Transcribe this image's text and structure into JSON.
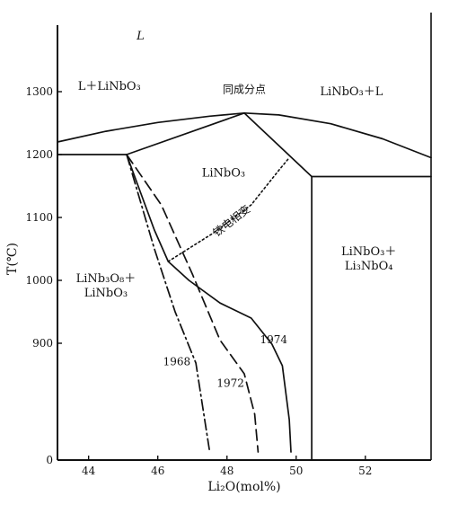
{
  "chart_data": {
    "type": "line",
    "title": "",
    "xlabel": "Li₂O(mol%)",
    "ylabel": "T(℃)",
    "xlim": [
      43.1,
      53.9
    ],
    "ylim": [
      0,
      1400
    ],
    "x_ticks": [
      {
        "value": 44,
        "label": "44"
      },
      {
        "value": 46,
        "label": "46"
      },
      {
        "value": 48,
        "label": "48"
      },
      {
        "value": 50,
        "label": "50"
      },
      {
        "value": 52,
        "label": "52"
      }
    ],
    "y_ticks": [
      {
        "value": 1300,
        "label": "1300"
      },
      {
        "value": 1200,
        "label": "1200"
      },
      {
        "value": 1100,
        "label": "1100"
      },
      {
        "value": 1000,
        "label": "1000"
      },
      {
        "value": 900,
        "label": "900"
      },
      {
        "value": 0,
        "label": "0"
      }
    ],
    "series": [
      {
        "id": "liquidus",
        "style": "solid",
        "points": [
          [
            43.1,
            1220
          ],
          [
            44.5,
            1237
          ],
          [
            46,
            1251
          ],
          [
            47.5,
            1261
          ],
          [
            48.5,
            1266
          ],
          [
            49.5,
            1263
          ],
          [
            51,
            1249
          ],
          [
            52.5,
            1225
          ],
          [
            53.9,
            1195
          ]
        ]
      },
      {
        "id": "solidus-left",
        "style": "solid",
        "points": [
          [
            45.1,
            1200
          ],
          [
            48.5,
            1266
          ]
        ]
      },
      {
        "id": "eutectic-left",
        "style": "solid",
        "points": [
          [
            43.1,
            1200
          ],
          [
            45.1,
            1200
          ]
        ]
      },
      {
        "id": "solidus-right",
        "style": "solid",
        "points": [
          [
            48.5,
            1266
          ],
          [
            50.45,
            1165
          ]
        ]
      },
      {
        "id": "eutectic-right",
        "style": "solid",
        "points": [
          [
            50.45,
            1165
          ],
          [
            53.9,
            1165
          ]
        ]
      },
      {
        "id": "boundary-right",
        "style": "solid",
        "points": [
          [
            50.45,
            1165
          ],
          [
            50.45,
            0
          ]
        ]
      },
      {
        "id": "boundary-1974",
        "name": "1974",
        "style": "solid",
        "points": [
          [
            45.1,
            1200
          ],
          [
            45.5,
            1140
          ],
          [
            45.9,
            1080
          ],
          [
            46.3,
            1030
          ],
          [
            46.9,
            1000
          ],
          [
            47.8,
            964
          ],
          [
            48.7,
            940
          ],
          [
            49.3,
            860
          ],
          [
            49.6,
            700
          ],
          [
            49.8,
            300
          ],
          [
            49.85,
            60
          ]
        ]
      },
      {
        "id": "boundary-1972",
        "name": "1972",
        "style": "dashed",
        "points": [
          [
            45.1,
            1200
          ],
          [
            46.1,
            1120
          ],
          [
            47.0,
            1010
          ],
          [
            47.8,
            890
          ],
          [
            48.5,
            640
          ],
          [
            48.8,
            340
          ],
          [
            48.9,
            60
          ]
        ]
      },
      {
        "id": "boundary-1968",
        "name": "1968",
        "style": "dashdot",
        "points": [
          [
            45.1,
            1200
          ],
          [
            45.9,
            1050
          ],
          [
            46.5,
            950
          ],
          [
            47.1,
            720
          ],
          [
            47.5,
            60
          ]
        ]
      },
      {
        "id": "ferroelectric",
        "style": "dotted",
        "points": [
          [
            46.3,
            1030
          ],
          [
            47.6,
            1075
          ],
          [
            48.7,
            1120
          ],
          [
            49.5,
            1175
          ],
          [
            49.8,
            1195
          ]
        ]
      }
    ],
    "region_labels": [
      {
        "lines": [
          "L"
        ],
        "x": 45.5,
        "y": 1383
      },
      {
        "lines": [
          "L＋LiNbO₃"
        ],
        "x": 44.6,
        "y": 1303
      },
      {
        "lines": [
          "LiNbO₃＋L"
        ],
        "x": 51.6,
        "y": 1294
      },
      {
        "lines": [
          "LiNbO₃"
        ],
        "x": 47.9,
        "y": 1165
      },
      {
        "lines": [
          "LiNbO₃＋",
          "Li₃NbO₄"
        ],
        "x": 52.1,
        "y": 1040
      },
      {
        "lines": [
          "LiNb₃O₈＋",
          "LiNbO₃"
        ],
        "x": 44.5,
        "y": 997
      }
    ],
    "annotations": [
      {
        "text": "同成分点",
        "x": 48.5,
        "y": 1298,
        "rotate": 0
      },
      {
        "text": "铁电相变",
        "x": 48.2,
        "y": 1090,
        "rotate": -38
      },
      {
        "text": "1974",
        "x": 49.35,
        "y": 868,
        "rotate": 0
      },
      {
        "text": "1972",
        "x": 48.1,
        "y": 542,
        "rotate": 0
      },
      {
        "text": "1968",
        "x": 46.55,
        "y": 705,
        "rotate": 0
      }
    ]
  }
}
